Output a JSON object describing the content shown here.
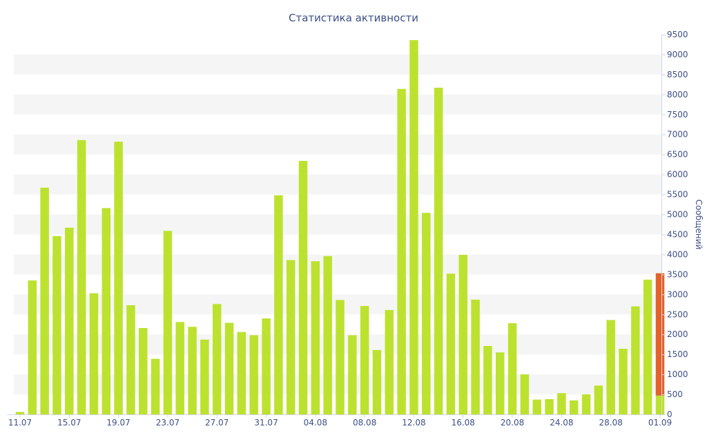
{
  "chart_data": {
    "type": "bar",
    "title": "Статистика активности",
    "ylabel": "Сообщений",
    "xlabel": "",
    "ylim": [
      0,
      9500
    ],
    "ytick_step": 500,
    "x_tick_labels": [
      "11.07",
      "15.07",
      "19.07",
      "23.07",
      "27.07",
      "31.07",
      "04.08",
      "08.08",
      "12.08",
      "16.08",
      "20.08",
      "24.08",
      "28.08",
      "01.09"
    ],
    "x_tick_every": 4,
    "categories": [
      "11.07",
      "12.07",
      "13.07",
      "14.07",
      "15.07",
      "16.07",
      "17.07",
      "18.07",
      "19.07",
      "20.07",
      "21.07",
      "22.07",
      "23.07",
      "24.07",
      "25.07",
      "26.07",
      "27.07",
      "28.07",
      "29.07",
      "30.07",
      "31.07",
      "01.08",
      "02.08",
      "03.08",
      "04.08",
      "05.08",
      "06.08",
      "07.08",
      "08.08",
      "09.08",
      "10.08",
      "11.08",
      "12.08",
      "13.08",
      "14.08",
      "15.08",
      "16.08",
      "17.08",
      "18.08",
      "19.08",
      "20.08",
      "21.08",
      "22.08",
      "23.08",
      "24.08",
      "25.08",
      "26.08",
      "27.08",
      "28.08",
      "29.08",
      "30.08",
      "31.08",
      "01.09"
    ],
    "values": [
      60,
      3350,
      5670,
      4460,
      4670,
      6860,
      3030,
      5160,
      6820,
      2730,
      2160,
      1390,
      4590,
      2310,
      2190,
      1870,
      2760,
      2290,
      2060,
      1980,
      2400,
      5480,
      3860,
      6340,
      3830,
      3960,
      2860,
      1980,
      2710,
      1610,
      2610,
      8140,
      9360,
      5040,
      8170,
      3520,
      3990,
      2870,
      1710,
      1550,
      2280,
      1000,
      370,
      380,
      530,
      350,
      500,
      720,
      2360,
      1640,
      2700,
      3370,
      3530
    ],
    "grid": "horizontal bands",
    "colors": {
      "bar": "#bce22f",
      "highlight": "#e3622b",
      "band": "#f5f5f5",
      "text": "#3c4f8a",
      "axis": "#cfd6e6"
    },
    "highlight_last_above": 470
  }
}
